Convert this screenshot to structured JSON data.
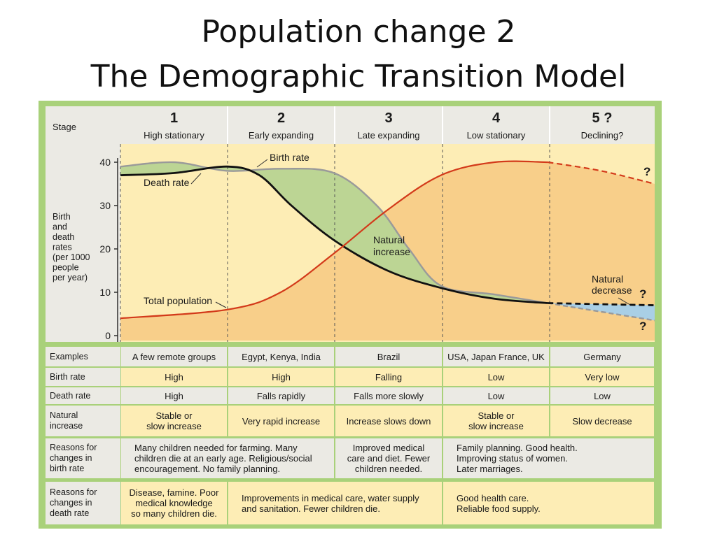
{
  "title_line1": "Population change 2",
  "title_line2": "The Demographic Transition Model",
  "header": {
    "stage_label": "Stage",
    "stages": [
      {
        "number": "1",
        "name": "High stationary"
      },
      {
        "number": "2",
        "name": "Early expanding"
      },
      {
        "number": "3",
        "name": "Late expanding"
      },
      {
        "number": "4",
        "name": "Low stationary"
      },
      {
        "number": "5 ?",
        "name": "Declining?"
      }
    ]
  },
  "chart": {
    "ylabel_lines": [
      "Birth",
      "and",
      "death",
      "rates",
      "(per 1000",
      "people",
      "per year)"
    ],
    "yticks": [
      0,
      10,
      20,
      30,
      40
    ],
    "labels": {
      "birth_rate": "Birth rate",
      "death_rate": "Death rate",
      "natural_increase_lines": [
        "Natural",
        "increase"
      ],
      "natural_decrease_lines": [
        "Natural",
        "decrease"
      ],
      "total_population": "Total population",
      "question": "?"
    },
    "colors": {
      "population": "#d33a1a",
      "death": "#111111",
      "birth": "#9a9a9a",
      "natural_increase_fill": "#bcd594",
      "background": "#fdedb5",
      "population_fill": "#f8cf8a",
      "natural_decrease_fill": "#a9cfe6"
    }
  },
  "chart_data": {
    "type": "line",
    "x_stages": [
      "1",
      "2",
      "3",
      "4",
      "5 ?"
    ],
    "ylim": [
      0,
      40
    ],
    "series": [
      {
        "name": "Birth rate",
        "points": [
          [
            0,
            39
          ],
          [
            0.5,
            40
          ],
          [
            1,
            38
          ],
          [
            1.5,
            38.5
          ],
          [
            2,
            37.5
          ],
          [
            2.4,
            30
          ],
          [
            2.7,
            20
          ],
          [
            3,
            11.5
          ],
          [
            3.5,
            9.5
          ],
          [
            4,
            7.5
          ],
          [
            5,
            3.5
          ]
        ]
      },
      {
        "name": "Death rate",
        "points": [
          [
            0,
            37
          ],
          [
            0.5,
            37.5
          ],
          [
            1,
            39
          ],
          [
            1.3,
            37
          ],
          [
            1.6,
            30
          ],
          [
            2,
            22
          ],
          [
            2.5,
            15
          ],
          [
            3,
            11
          ],
          [
            3.5,
            8.5
          ],
          [
            4,
            7.5
          ],
          [
            5,
            7
          ]
        ]
      },
      {
        "name": "Total population",
        "points": [
          [
            0,
            4
          ],
          [
            1,
            6
          ],
          [
            1.5,
            10
          ],
          [
            2,
            19
          ],
          [
            2.5,
            29
          ],
          [
            3,
            37
          ],
          [
            3.5,
            40
          ],
          [
            4,
            40
          ],
          [
            4.5,
            38
          ],
          [
            5,
            35
          ]
        ]
      }
    ]
  },
  "rows": [
    {
      "label_lines": [
        "Examples"
      ],
      "cells": [
        {
          "lines": [
            "A few remote groups"
          ],
          "span": 1
        },
        {
          "lines": [
            "Egypt, Kenya, India"
          ],
          "span": 1
        },
        {
          "lines": [
            "Brazil"
          ],
          "span": 1
        },
        {
          "lines": [
            "USA, Japan France, UK"
          ],
          "span": 1
        },
        {
          "lines": [
            "Germany"
          ],
          "span": 1
        }
      ]
    },
    {
      "label_lines": [
        "Birth rate"
      ],
      "cells": [
        {
          "lines": [
            "High"
          ],
          "span": 1
        },
        {
          "lines": [
            "High"
          ],
          "span": 1
        },
        {
          "lines": [
            "Falling"
          ],
          "span": 1
        },
        {
          "lines": [
            "Low"
          ],
          "span": 1
        },
        {
          "lines": [
            "Very low"
          ],
          "span": 1
        }
      ]
    },
    {
      "label_lines": [
        "Death rate"
      ],
      "cells": [
        {
          "lines": [
            "High"
          ],
          "span": 1
        },
        {
          "lines": [
            "Falls rapidly"
          ],
          "span": 1
        },
        {
          "lines": [
            "Falls more slowly"
          ],
          "span": 1
        },
        {
          "lines": [
            "Low"
          ],
          "span": 1
        },
        {
          "lines": [
            "Low"
          ],
          "span": 1
        }
      ]
    },
    {
      "label_lines": [
        "Natural",
        "increase"
      ],
      "cells": [
        {
          "lines": [
            "Stable or",
            "slow increase"
          ],
          "span": 1
        },
        {
          "lines": [
            "Very rapid increase"
          ],
          "span": 1
        },
        {
          "lines": [
            "Increase slows down"
          ],
          "span": 1
        },
        {
          "lines": [
            "Stable or",
            "slow increase"
          ],
          "span": 1
        },
        {
          "lines": [
            "Slow decrease"
          ],
          "span": 1
        }
      ]
    },
    {
      "label_lines": [
        "Reasons for",
        "changes in",
        "birth rate"
      ],
      "cells": [
        {
          "lines": [
            "Many children needed for farming. Many",
            "children die at an early age. Religious/social",
            "encouragement. No family planning."
          ],
          "span": 2
        },
        {
          "lines": [
            "Improved medical",
            "care and diet. Fewer",
            "children needed."
          ],
          "span": 1
        },
        {
          "lines": [
            "Family planning. Good health.",
            "Improving status of women.",
            "Later marriages."
          ],
          "span": 2
        }
      ]
    },
    {
      "label_lines": [
        "Reasons for",
        "changes in",
        "death rate"
      ],
      "cells": [
        {
          "lines": [
            "Disease, famine. Poor",
            "medical knowledge",
            "so many children die."
          ],
          "span": 1
        },
        {
          "lines": [
            "Improvements in medical care, water supply",
            "and sanitation. Fewer children die."
          ],
          "span": 2
        },
        {
          "lines": [
            "Good health care.",
            "Reliable food supply."
          ],
          "span": 2
        }
      ]
    }
  ]
}
